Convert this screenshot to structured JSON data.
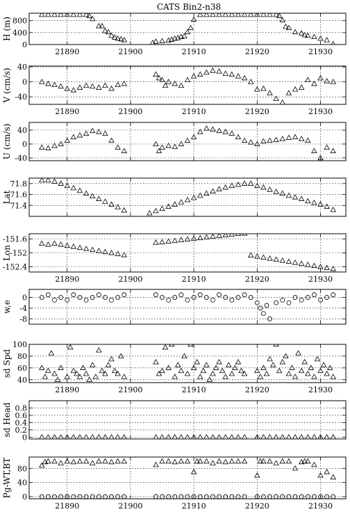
{
  "title": "CATS Bin2-n38",
  "x_ticks": [
    21890,
    21900,
    21910,
    21920,
    21930
  ],
  "x_range": [
    21884,
    21934
  ],
  "chart_data": [
    {
      "id": "h",
      "type": "scatter",
      "marker": "triangle",
      "ylabel": "H (m)",
      "ylim": [
        0,
        1050
      ],
      "yticks": [
        0,
        400,
        800
      ],
      "grid": true,
      "x": [
        21886,
        21887,
        21888,
        21889,
        21890,
        21891,
        21892,
        21893,
        21893.5,
        21894,
        21895,
        21895.5,
        21896,
        21896.5,
        21897,
        21897.5,
        21898,
        21898.5,
        21899,
        21903.5,
        21904,
        21905,
        21906,
        21906.5,
        21907,
        21907.5,
        21908,
        21908.5,
        21909,
        21909.5,
        21910,
        21911,
        21912,
        21913,
        21914,
        21915,
        21916,
        21917,
        21918,
        21919,
        21920,
        21921,
        21922,
        21923,
        21923.5,
        21924,
        21924.5,
        21925,
        21926,
        21927,
        21927.5,
        21928,
        21929,
        21930,
        21931,
        21932
      ],
      "y": [
        1000,
        1000,
        1000,
        1000,
        1000,
        1000,
        1000,
        1000,
        960,
        860,
        620,
        620,
        460,
        420,
        300,
        240,
        200,
        180,
        150,
        60,
        100,
        120,
        140,
        170,
        200,
        220,
        260,
        280,
        420,
        560,
        840,
        1000,
        1000,
        1000,
        1000,
        1000,
        1000,
        1000,
        1000,
        1000,
        1000,
        1000,
        1000,
        1000,
        960,
        820,
        600,
        560,
        420,
        380,
        320,
        300,
        260,
        200,
        150,
        20
      ]
    },
    {
      "id": "v",
      "type": "scatter",
      "marker": "triangle",
      "ylabel": "V (cm/s)",
      "ylim": [
        -60,
        42
      ],
      "yticks": [
        -40,
        0,
        40
      ],
      "grid": true,
      "x": [
        21886,
        21887,
        21888,
        21889,
        21890,
        21891,
        21892,
        21893,
        21894,
        21895,
        21896,
        21897,
        21898,
        21899,
        21904,
        21904.5,
        21905,
        21905.5,
        21906,
        21907,
        21908,
        21909,
        21910,
        21911,
        21912,
        21913,
        21914,
        21915,
        21916,
        21917,
        21918,
        21919,
        21920,
        21921,
        21922,
        21923,
        21924,
        21925,
        21926,
        21927,
        21928,
        21929,
        21930,
        21931,
        21932
      ],
      "y": [
        0,
        -5,
        -8,
        -12,
        -18,
        -22,
        -15,
        -10,
        -12,
        -15,
        -10,
        -18,
        -8,
        -5,
        20,
        10,
        5,
        -10,
        0,
        -5,
        -10,
        5,
        15,
        20,
        25,
        30,
        28,
        22,
        20,
        15,
        10,
        0,
        -20,
        -18,
        -30,
        -45,
        -55,
        -30,
        -20,
        -15,
        5,
        -5,
        10,
        2,
        0
      ]
    },
    {
      "id": "u",
      "type": "scatter",
      "marker": "triangle",
      "ylabel": "U (cm/s)",
      "ylim": [
        -48,
        62
      ],
      "yticks": [
        -40,
        0,
        40
      ],
      "grid": true,
      "x": [
        21886,
        21887,
        21888,
        21889,
        21890,
        21891,
        21892,
        21893,
        21894,
        21895,
        21896,
        21897,
        21898,
        21899,
        21904,
        21904.5,
        21905,
        21906,
        21907,
        21908,
        21909,
        21910,
        21911,
        21912,
        21913,
        21914,
        21915,
        21916,
        21917,
        21918,
        21919,
        21920,
        21921,
        21922,
        21923,
        21924,
        21925,
        21926,
        21927,
        21928,
        21929,
        21930,
        21931,
        21932
      ],
      "y": [
        -10,
        -12,
        -5,
        0,
        10,
        20,
        25,
        30,
        38,
        35,
        30,
        10,
        -10,
        -20,
        0,
        -20,
        -10,
        -5,
        -8,
        0,
        10,
        20,
        35,
        45,
        42,
        38,
        35,
        30,
        20,
        10,
        5,
        0,
        8,
        10,
        12,
        15,
        18,
        20,
        15,
        10,
        -20,
        -40,
        -10,
        -20
      ]
    },
    {
      "id": "lat",
      "type": "scatter",
      "marker": "triangle",
      "ylabel": "Lat",
      "ylim": [
        71.2,
        71.9
      ],
      "yticks": [
        71.4,
        71.6,
        71.8
      ],
      "grid": true,
      "x": [
        21886,
        21887,
        21888,
        21889,
        21890,
        21891,
        21892,
        21893,
        21894,
        21895,
        21896,
        21897,
        21898,
        21899,
        21903,
        21904,
        21905,
        21906,
        21907,
        21908,
        21909,
        21910,
        21911,
        21912,
        21913,
        21914,
        21915,
        21916,
        21917,
        21918,
        21919,
        21920,
        21921,
        21922,
        21923,
        21924,
        21925,
        21926,
        21927,
        21928,
        21929,
        21930,
        21931,
        21932
      ],
      "y": [
        71.86,
        71.86,
        71.84,
        71.8,
        71.76,
        71.72,
        71.67,
        71.62,
        71.57,
        71.52,
        71.47,
        71.42,
        71.37,
        71.31,
        71.26,
        71.3,
        71.34,
        71.38,
        71.42,
        71.46,
        71.5,
        71.54,
        71.58,
        71.62,
        71.66,
        71.7,
        71.73,
        71.76,
        71.78,
        71.8,
        71.8,
        71.76,
        71.73,
        71.69,
        71.65,
        71.62,
        71.58,
        71.55,
        71.52,
        71.48,
        71.45,
        71.42,
        71.38,
        71.32
      ]
    },
    {
      "id": "lon",
      "type": "scatter",
      "marker": "triangle",
      "ylabel": "Lon",
      "ylim": [
        -152.55,
        -151.45
      ],
      "yticks": [
        -152.4,
        -152.0,
        -151.6
      ],
      "grid": true,
      "x": [
        21886,
        21887,
        21888,
        21889,
        21890,
        21891,
        21892,
        21893,
        21894,
        21895,
        21896,
        21897,
        21898,
        21899,
        21904,
        21905,
        21906,
        21907,
        21908,
        21909,
        21910,
        21911,
        21912,
        21913,
        21914,
        21915,
        21916,
        21917,
        21918,
        21919,
        21920,
        21921,
        21922,
        21923,
        21924,
        21925,
        21926,
        21927,
        21928,
        21929,
        21930,
        21931,
        21932
      ],
      "y": [
        -151.73,
        -151.76,
        -151.73,
        -151.76,
        -151.79,
        -151.82,
        -151.85,
        -151.88,
        -151.91,
        -151.94,
        -151.97,
        -152.0,
        -152.03,
        -152.06,
        -151.7,
        -151.69,
        -151.67,
        -151.65,
        -151.63,
        -151.61,
        -151.59,
        -151.57,
        -151.55,
        -151.53,
        -151.51,
        -151.49,
        -151.47,
        -151.45,
        -151.44,
        -152.07,
        -152.1,
        -152.13,
        -152.16,
        -152.19,
        -152.22,
        -152.25,
        -152.28,
        -152.31,
        -152.34,
        -152.37,
        -152.4,
        -152.43,
        -152.46
      ]
    },
    {
      "id": "we",
      "type": "scatter",
      "marker": "circle",
      "ylabel": "w,e",
      "ylim": [
        -10,
        3
      ],
      "yticks": [
        -8,
        -4,
        0
      ],
      "grid": true,
      "x": [
        21886,
        21887,
        21888,
        21889,
        21890,
        21891,
        21892,
        21893,
        21894,
        21895,
        21896,
        21897,
        21898,
        21899,
        21904,
        21905,
        21906,
        21907,
        21908,
        21909,
        21910,
        21911,
        21912,
        21913,
        21914,
        21915,
        21916,
        21917,
        21918,
        21919,
        21920,
        21920.5,
        21921,
        21921.5,
        21922,
        21923,
        21924,
        21925,
        21926,
        21927,
        21928,
        21929,
        21930,
        21931,
        21932
      ],
      "y": [
        0,
        1,
        -1,
        0,
        -1,
        1,
        0,
        -1,
        0,
        1,
        0,
        -1,
        0,
        1,
        1,
        0,
        -1,
        0,
        1,
        -1,
        0,
        1,
        0,
        -1,
        1,
        0,
        -1,
        0,
        1,
        0,
        -2,
        -4,
        -6,
        -3,
        -8,
        -2,
        -1,
        -2,
        0,
        -1,
        0,
        1,
        -1,
        0,
        1
      ]
    },
    {
      "id": "sdspd",
      "type": "scatter",
      "marker": "triangle",
      "ylabel": "sd Spd",
      "ylim": [
        35,
        100
      ],
      "yticks": [
        40,
        60,
        80,
        100
      ],
      "grid": true,
      "x": [
        21886,
        21886.5,
        21887,
        21887.5,
        21888,
        21888.5,
        21889,
        21890,
        21890.5,
        21891,
        21891.5,
        21892,
        21892.5,
        21893,
        21893.5,
        21894,
        21894.5,
        21895,
        21895.5,
        21896,
        21896.5,
        21897,
        21897.5,
        21898,
        21898.5,
        21899,
        21904,
        21904.5,
        21905,
        21905.5,
        21906,
        21906.5,
        21907,
        21907.5,
        21908,
        21908.5,
        21909,
        21909.5,
        21910,
        21910.5,
        21911,
        21911.5,
        21912,
        21912.5,
        21913,
        21913.5,
        21914,
        21914.5,
        21915,
        21915.5,
        21916,
        21916.5,
        21917,
        21917.5,
        21918,
        21920,
        21920.5,
        21921,
        21921.5,
        21922,
        21922.5,
        21923,
        21923.5,
        21924,
        21924.5,
        21925,
        21925.5,
        21926,
        21926.5,
        21927,
        21927.5,
        21928,
        21928.5,
        21929,
        21929.5,
        21930,
        21930.5,
        21931,
        21931.5,
        21932
      ],
      "y": [
        60,
        45,
        55,
        85,
        50,
        40,
        60,
        45,
        95,
        55,
        50,
        45,
        60,
        50,
        40,
        65,
        45,
        90,
        55,
        50,
        65,
        75,
        55,
        50,
        80,
        45,
        70,
        50,
        55,
        95,
        60,
        100,
        45,
        65,
        55,
        80,
        50,
        100,
        60,
        70,
        45,
        55,
        65,
        40,
        50,
        60,
        70,
        55,
        45,
        65,
        50,
        60,
        70,
        55,
        50,
        55,
        45,
        60,
        50,
        75,
        65,
        100,
        55,
        70,
        80,
        50,
        60,
        45,
        85,
        55,
        70,
        50,
        60,
        45,
        75,
        55,
        65,
        50,
        60,
        45
      ]
    },
    {
      "id": "sdhead",
      "type": "scatter",
      "marker": "triangle",
      "ylabel": "sd Head",
      "ylim": [
        -0.05,
        1.0
      ],
      "yticks": [
        0.0,
        0.2,
        0.4,
        0.6,
        0.8
      ],
      "grid": true,
      "x": [
        21886,
        21887,
        21888,
        21889,
        21890,
        21891,
        21892,
        21893,
        21894,
        21895,
        21896,
        21897,
        21898,
        21899,
        21904,
        21905,
        21906,
        21907,
        21908,
        21909,
        21910,
        21911,
        21912,
        21913,
        21914,
        21915,
        21916,
        21917,
        21918,
        21920,
        21921,
        21922,
        21923,
        21924,
        21925,
        21926,
        21927,
        21928,
        21929,
        21930,
        21931,
        21932
      ],
      "y": [
        0,
        0,
        0,
        0,
        0,
        0,
        0,
        0,
        0,
        0,
        0,
        0,
        0,
        0,
        0,
        0,
        0,
        0,
        0,
        0,
        0,
        0,
        0,
        0,
        0,
        0,
        0,
        0,
        0,
        0,
        0,
        0,
        0,
        0,
        0,
        0,
        0,
        0,
        0,
        0,
        0,
        0
      ]
    },
    {
      "id": "pg",
      "type": "scatter",
      "marker": "triangle",
      "ylabel": "Pg-WT,BT",
      "ylim": [
        -6,
        112
      ],
      "yticks": [
        0,
        40,
        80
      ],
      "grid": true,
      "series": [
        {
          "marker": "triangle",
          "x": [
            21886,
            21886.5,
            21887,
            21888,
            21889,
            21890,
            21891,
            21892,
            21893,
            21894,
            21895,
            21896,
            21897,
            21898,
            21899,
            21904,
            21905,
            21906,
            21907,
            21908,
            21909,
            21910,
            21910.5,
            21911,
            21912,
            21913,
            21914,
            21915,
            21916,
            21917,
            21918,
            21920,
            21920.5,
            21921,
            21922,
            21923,
            21924,
            21925,
            21926,
            21927,
            21927.5,
            21928,
            21929,
            21930,
            21931,
            21932
          ],
          "y": [
            88,
            98,
            100,
            100,
            95,
            100,
            98,
            100,
            100,
            95,
            100,
            100,
            98,
            100,
            100,
            90,
            100,
            100,
            98,
            100,
            100,
            70,
            100,
            100,
            100,
            95,
            100,
            98,
            100,
            100,
            100,
            60,
            100,
            100,
            100,
            95,
            100,
            100,
            80,
            98,
            100,
            100,
            90,
            60,
            70,
            55
          ]
        },
        {
          "marker": "circle",
          "x": [
            21886,
            21887,
            21888,
            21889,
            21890,
            21891,
            21892,
            21893,
            21894,
            21895,
            21896,
            21897,
            21898,
            21899,
            21904,
            21905,
            21906,
            21907,
            21908,
            21909,
            21910,
            21911,
            21912,
            21913,
            21914,
            21915,
            21916,
            21917,
            21918,
            21920,
            21921,
            21922,
            21923,
            21924,
            21925,
            21926,
            21927,
            21928,
            21929,
            21930,
            21931,
            21932
          ],
          "y": [
            0,
            0,
            0,
            0,
            0,
            0,
            0,
            0,
            0,
            0,
            0,
            0,
            0,
            0,
            0,
            0,
            0,
            0,
            0,
            0,
            0,
            0,
            0,
            0,
            0,
            0,
            0,
            0,
            0,
            0,
            0,
            0,
            0,
            0,
            0,
            0,
            0,
            0,
            0,
            0,
            0,
            0
          ]
        }
      ]
    }
  ]
}
